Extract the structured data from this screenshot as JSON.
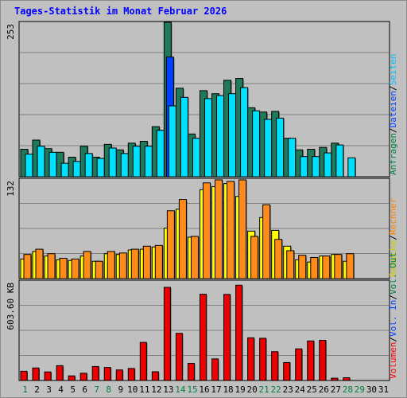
{
  "title": "Tages-Statistik im Monat Februar 2026",
  "chart_data": [
    {
      "type": "bar",
      "name": "hits-files-pages-chart",
      "ylabel": "253",
      "ylim": [
        0,
        253
      ],
      "legend_right": [
        {
          "text": "Anfragen",
          "color": "#008040"
        },
        {
          "text": "/",
          "color": "#000000"
        },
        {
          "text": "Dateien",
          "color": "#0040ff"
        },
        {
          "text": "/",
          "color": "#000000"
        },
        {
          "text": "Seiten",
          "color": "#00c0ff"
        }
      ],
      "series": [
        {
          "name": "Anfragen",
          "color": "#1f7a5a",
          "values": [
            45,
            60,
            46,
            40,
            32,
            50,
            32,
            53,
            44,
            55,
            58,
            82,
            253,
            145,
            70,
            141,
            136,
            158,
            161,
            113,
            106,
            107,
            63,
            44,
            45,
            48,
            55,
            0,
            0,
            0,
            0
          ]
        },
        {
          "name": "Dateien",
          "color": "#0040ff",
          "values": [
            0,
            0,
            0,
            0,
            0,
            0,
            0,
            0,
            0,
            0,
            0,
            0,
            196,
            0,
            0,
            0,
            0,
            0,
            0,
            0,
            0,
            0,
            0,
            0,
            0,
            0,
            0,
            0,
            0,
            0,
            0
          ]
        },
        {
          "name": "Seiten",
          "color": "#00e0ff",
          "values": [
            37,
            50,
            40,
            22,
            25,
            38,
            30,
            47,
            38,
            50,
            50,
            76,
            116,
            130,
            63,
            128,
            133,
            136,
            146,
            108,
            94,
            96,
            63,
            33,
            33,
            39,
            52,
            31,
            0,
            0,
            0
          ]
        }
      ]
    },
    {
      "type": "bar",
      "name": "visits-sites-chart",
      "ylabel": "132",
      "ylim": [
        0,
        132
      ],
      "legend_right": [
        {
          "text": "Besuche",
          "color": "#c8c800"
        },
        {
          "text": "/",
          "color": "#000000"
        },
        {
          "text": "Rechner",
          "color": "#ff8000"
        }
      ],
      "series": [
        {
          "name": "Besuche",
          "color": "#ffff00",
          "values": [
            26,
            36,
            30,
            25,
            24,
            30,
            23,
            33,
            32,
            38,
            39,
            42,
            67,
            92,
            55,
            118,
            122,
            126,
            109,
            63,
            81,
            64,
            43,
            25,
            22,
            30,
            32,
            23,
            0,
            0,
            0
          ]
        },
        {
          "name": "Rechner",
          "color": "#ff8c1a",
          "values": [
            32,
            39,
            33,
            27,
            26,
            36,
            23,
            36,
            34,
            39,
            43,
            44,
            90,
            105,
            56,
            127,
            131,
            129,
            131,
            56,
            98,
            52,
            37,
            31,
            28,
            30,
            32,
            33,
            0,
            0,
            0
          ]
        }
      ]
    },
    {
      "type": "bar",
      "name": "volume-chart",
      "ylabel": "603.60 KB",
      "ylim": [
        0,
        603.6
      ],
      "legend_right": [
        {
          "text": "Volumen",
          "color": "#ff0000"
        },
        {
          "text": "/",
          "color": "#000000"
        },
        {
          "text": "Vol. In",
          "color": "#0040ff"
        },
        {
          "text": "/",
          "color": "#000000"
        },
        {
          "text": "Vol. Out",
          "color": "#008040"
        }
      ],
      "series": [
        {
          "name": "Volumen",
          "color": "#ee0000",
          "values": [
            56,
            76,
            52,
            90,
            28,
            44,
            85,
            79,
            64,
            73,
            231,
            53,
            565,
            286,
            104,
            523,
            131,
            522,
            578,
            259,
            256,
            175,
            109,
            192,
            240,
            244,
            14,
            17,
            0,
            0,
            0
          ]
        }
      ]
    }
  ],
  "x_labels": [
    {
      "text": "1",
      "color": "#008040"
    },
    {
      "text": "2",
      "color": "#000000"
    },
    {
      "text": "3",
      "color": "#000000"
    },
    {
      "text": "4",
      "color": "#000000"
    },
    {
      "text": "5",
      "color": "#000000"
    },
    {
      "text": "6",
      "color": "#000000"
    },
    {
      "text": "7",
      "color": "#008040"
    },
    {
      "text": "8",
      "color": "#008040"
    },
    {
      "text": "9",
      "color": "#000000"
    },
    {
      "text": "10",
      "color": "#000000"
    },
    {
      "text": "11",
      "color": "#000000"
    },
    {
      "text": "12",
      "color": "#000000"
    },
    {
      "text": "13",
      "color": "#000000"
    },
    {
      "text": "14",
      "color": "#008040"
    },
    {
      "text": "15",
      "color": "#008040"
    },
    {
      "text": "16",
      "color": "#000000"
    },
    {
      "text": "17",
      "color": "#000000"
    },
    {
      "text": "18",
      "color": "#000000"
    },
    {
      "text": "19",
      "color": "#000000"
    },
    {
      "text": "20",
      "color": "#000000"
    },
    {
      "text": "21",
      "color": "#008040"
    },
    {
      "text": "22",
      "color": "#008040"
    },
    {
      "text": "23",
      "color": "#000000"
    },
    {
      "text": "24",
      "color": "#000000"
    },
    {
      "text": "25",
      "color": "#000000"
    },
    {
      "text": "26",
      "color": "#000000"
    },
    {
      "text": "27",
      "color": "#000000"
    },
    {
      "text": "28",
      "color": "#008040"
    },
    {
      "text": "29",
      "color": "#008040"
    },
    {
      "text": "30",
      "color": "#000000"
    },
    {
      "text": "31",
      "color": "#000000"
    }
  ]
}
